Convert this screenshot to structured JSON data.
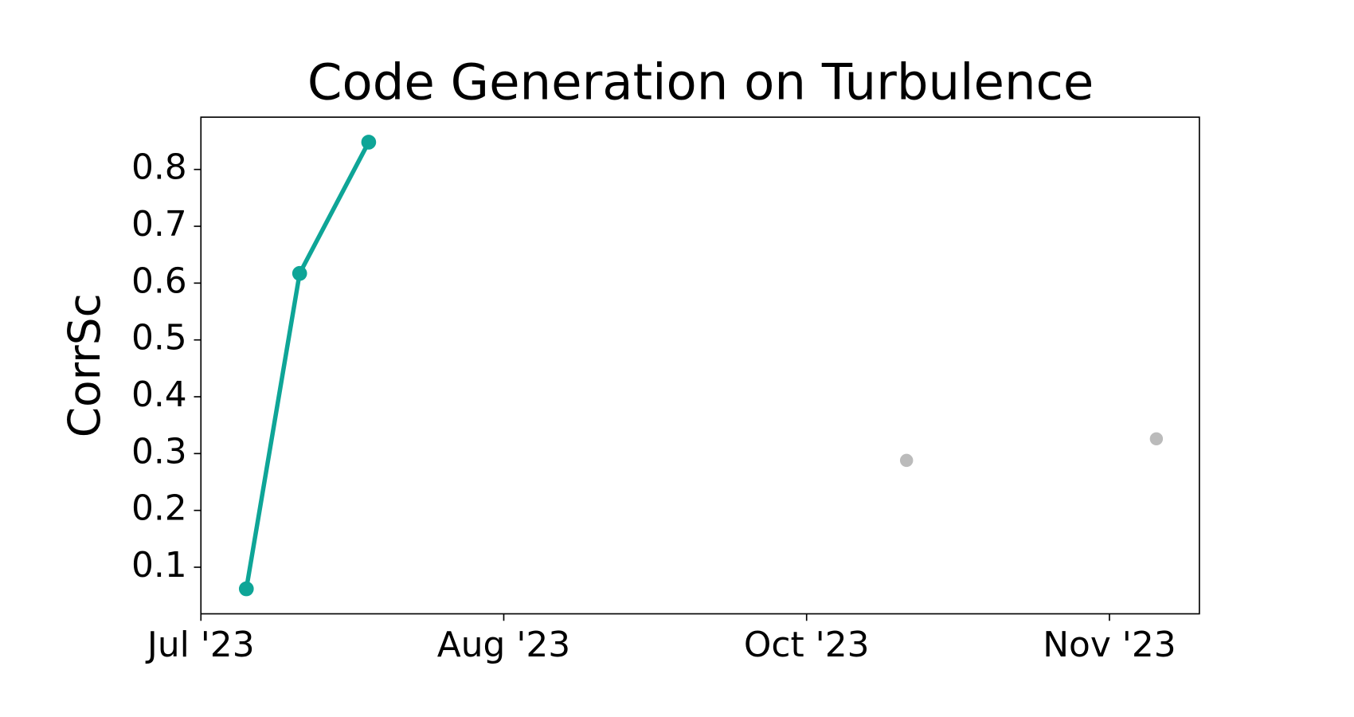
{
  "chart_data": {
    "type": "line",
    "title": "Code Generation on Turbulence",
    "ylabel": "CorrSc",
    "xlim": [
      0,
      3.297
    ],
    "xticks": [
      {
        "value": 0,
        "label": "Jul '23"
      },
      {
        "value": 1,
        "label": "Aug '23"
      },
      {
        "value": 2,
        "label": "Oct '23"
      },
      {
        "value": 3,
        "label": "Nov '23"
      }
    ],
    "ylim": [
      0.018,
      0.892
    ],
    "yticks": [
      {
        "value": 0.1,
        "label": "0.1"
      },
      {
        "value": 0.2,
        "label": "0.2"
      },
      {
        "value": 0.3,
        "label": "0.3"
      },
      {
        "value": 0.4,
        "label": "0.4"
      },
      {
        "value": 0.5,
        "label": "0.5"
      },
      {
        "value": 0.6,
        "label": "0.6"
      },
      {
        "value": 0.7,
        "label": "0.7"
      },
      {
        "value": 0.8,
        "label": "0.8"
      }
    ],
    "grid": false,
    "series": [
      {
        "color": "#0ea597",
        "line": true,
        "x": [
          0.15,
          0.326,
          0.554
        ],
        "values": [
          0.062,
          0.617,
          0.848
        ]
      },
      {
        "color": "#bbbbbb",
        "line": false,
        "x": [
          2.33,
          3.155
        ],
        "values": [
          0.288,
          0.326
        ]
      }
    ]
  }
}
